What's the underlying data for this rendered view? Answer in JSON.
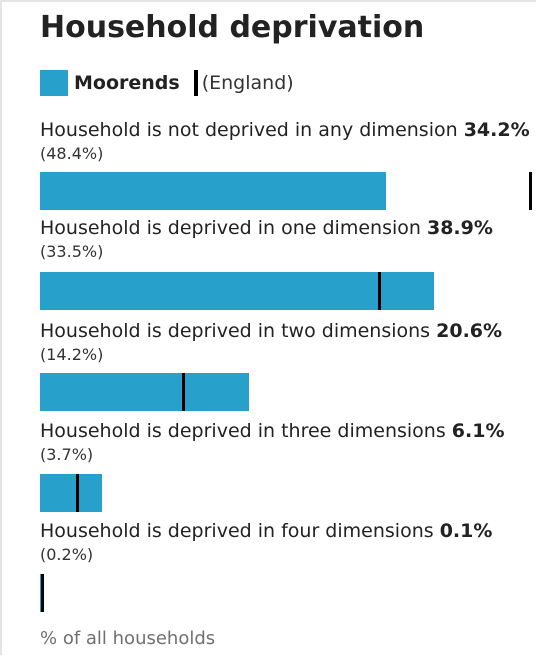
{
  "chart_data": {
    "type": "bar",
    "orientation": "horizontal",
    "title": "Household deprivation",
    "categories": [
      "Household is not deprived in any dimension",
      "Household is deprived in one dimension",
      "Household is deprived in two dimensions",
      "Household is deprived in three dimensions",
      "Household is deprived in four dimensions"
    ],
    "series": [
      {
        "name": "Moorends",
        "color": "#27a0cc",
        "values": [
          34.2,
          38.9,
          20.6,
          6.1,
          0.1
        ],
        "value_labels": [
          "34.2%",
          "38.9%",
          "20.6%",
          "6.1%",
          "0.1%"
        ]
      },
      {
        "name": "(England)",
        "color": "#000000",
        "marker": "line",
        "values": [
          48.4,
          33.5,
          14.2,
          3.7,
          0.2
        ],
        "value_labels": [
          "(48.4%)",
          "(33.5%)",
          "(14.2%)",
          "(3.7%)",
          "(0.2%)"
        ]
      }
    ],
    "x_label": "% of all households"
  }
}
